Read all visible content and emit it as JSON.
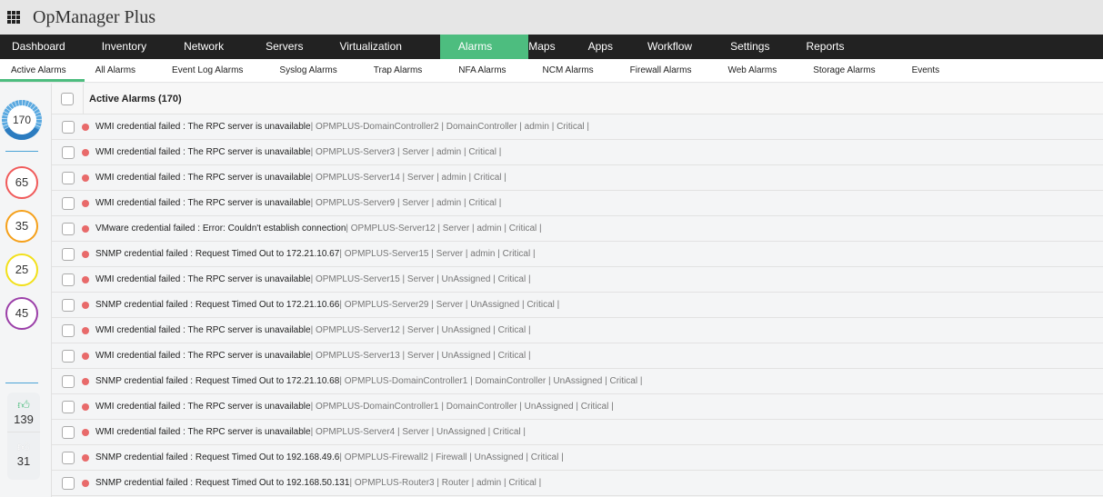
{
  "app": {
    "title": "OpManager Plus"
  },
  "nav": [
    "Dashboard",
    "Inventory",
    "Network",
    "Servers",
    "Virtualization",
    "Alarms",
    "Maps",
    "Apps",
    "Workflow",
    "Settings",
    "Reports"
  ],
  "nav_active": "Alarms",
  "subnav": [
    "Active Alarms",
    "All Alarms",
    "Event Log Alarms",
    "Syslog Alarms",
    "Trap Alarms",
    "NFA Alarms",
    "NCM Alarms",
    "Firewall Alarms",
    "Web Alarms",
    "Storage Alarms",
    "Events"
  ],
  "summary": {
    "total": "170",
    "counts": [
      {
        "value": "65",
        "color": "#f05a5a"
      },
      {
        "value": "35",
        "color": "#f5a01a"
      },
      {
        "value": "25",
        "color": "#f2e01a"
      },
      {
        "value": "45",
        "color": "#9b3fa8"
      }
    ],
    "acknowledged": "139",
    "unacknowledged": "31"
  },
  "list": {
    "header": "Active Alarms (170)",
    "rows": [
      {
        "msg": "WMI credential failed : The RPC server is unavailable",
        "meta": " | OPMPLUS-DomainController2 | DomainController | admin | Critical |"
      },
      {
        "msg": "WMI credential failed : The RPC server is unavailable",
        "meta": " | OPMPLUS-Server3 | Server | admin | Critical |"
      },
      {
        "msg": "WMI credential failed : The RPC server is unavailable",
        "meta": " | OPMPLUS-Server14 | Server | admin | Critical |"
      },
      {
        "msg": "WMI credential failed : The RPC server is unavailable",
        "meta": " | OPMPLUS-Server9 | Server | admin | Critical |"
      },
      {
        "msg": "VMware credential failed : Error: Couldn't establish connection",
        "meta": " | OPMPLUS-Server12 | Server | admin | Critical |"
      },
      {
        "msg": "SNMP credential failed : Request Timed Out to 172.21.10.67",
        "meta": " | OPMPLUS-Server15 | Server | admin | Critical |"
      },
      {
        "msg": "WMI credential failed : The RPC server is unavailable",
        "meta": " | OPMPLUS-Server15 | Server | UnAssigned | Critical |"
      },
      {
        "msg": "SNMP credential failed : Request Timed Out to 172.21.10.66",
        "meta": " | OPMPLUS-Server29 | Server | UnAssigned | Critical |"
      },
      {
        "msg": "WMI credential failed : The RPC server is unavailable",
        "meta": " | OPMPLUS-Server12 | Server | UnAssigned | Critical |"
      },
      {
        "msg": "WMI credential failed : The RPC server is unavailable",
        "meta": " | OPMPLUS-Server13 | Server | UnAssigned | Critical |"
      },
      {
        "msg": "SNMP credential failed : Request Timed Out to 172.21.10.68",
        "meta": " | OPMPLUS-DomainController1 | DomainController | UnAssigned | Critical |"
      },
      {
        "msg": "WMI credential failed : The RPC server is unavailable",
        "meta": " | OPMPLUS-DomainController1 | DomainController | UnAssigned | Critical |"
      },
      {
        "msg": "WMI credential failed : The RPC server is unavailable",
        "meta": " | OPMPLUS-Server4 | Server | UnAssigned | Critical |"
      },
      {
        "msg": "SNMP credential failed : Request Timed Out to 192.168.49.6",
        "meta": " | OPMPLUS-Firewall2 | Firewall | UnAssigned | Critical |"
      },
      {
        "msg": "SNMP credential failed : Request Timed Out to 192.168.50.131",
        "meta": " | OPMPLUS-Router3 | Router | admin | Critical |"
      }
    ]
  }
}
